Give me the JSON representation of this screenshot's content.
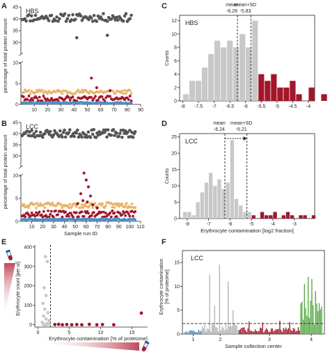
{
  "figure": {
    "panels": [
      {
        "id": "A",
        "letter": "A",
        "group": "HBS"
      },
      {
        "id": "B",
        "letter": "B",
        "group": "LCC"
      },
      {
        "id": "C",
        "letter": "C",
        "group": "HBS"
      },
      {
        "id": "D",
        "letter": "D",
        "group": "LCC"
      },
      {
        "id": "E",
        "letter": "E",
        "group": ""
      },
      {
        "id": "F",
        "letter": "F",
        "group": "LCC"
      }
    ],
    "colors": {
      "dark_gray": "#555555",
      "gray": "#b3b3b3",
      "light_gray": "#c8c8c8",
      "orange": "#e8b56a",
      "red": "#a3162a",
      "blue": "#4a8fc8",
      "green": "#58a845"
    },
    "icons": [
      "test-tube-icon",
      "test-tube-icon"
    ]
  },
  "chart_data": [
    {
      "panel": "A",
      "type": "scatter",
      "title": "HBS",
      "xlabel": "",
      "ylabel": "percentage of total protein amount",
      "xlim": [
        0,
        90
      ],
      "x_ticks": [
        10,
        20,
        30,
        40,
        50,
        60,
        70,
        80,
        90
      ],
      "upper_ylim": [
        25,
        45
      ],
      "upper_ticks": [
        30,
        35,
        40,
        45
      ],
      "lower_ylim": [
        0,
        10
      ],
      "lower_ticks": [
        0,
        5,
        10
      ],
      "grid": false,
      "n_samples": 83,
      "series": [
        {
          "name": "",
          "color": "dark_gray",
          "level": 40.5,
          "spread": 1.7,
          "outliers": [
            [
              42,
              32
            ],
            [
              65,
              33
            ]
          ]
        },
        {
          "name": "",
          "color": "orange",
          "level": 3.0,
          "spread": 0.5,
          "outliers": []
        },
        {
          "name": "",
          "color": "red",
          "level": 1.4,
          "spread": 0.6,
          "outliers": [
            [
              53,
              6.3
            ],
            [
              57,
              4.0
            ],
            [
              67,
              3.3
            ]
          ]
        },
        {
          "name": "",
          "color": "blue",
          "level": 0.35,
          "spread": 0.15,
          "outliers": []
        }
      ]
    },
    {
      "panel": "B",
      "type": "scatter",
      "title": "LCC",
      "xlabel": "Sample run ID",
      "ylabel": "percentage of total protein amount",
      "xlim": [
        0,
        110
      ],
      "x_ticks": [
        10,
        20,
        30,
        40,
        50,
        60,
        70,
        80,
        90,
        100,
        110
      ],
      "upper_ylim": [
        25,
        45
      ],
      "upper_ticks": [
        30,
        35,
        40,
        45
      ],
      "lower_ylim": [
        0,
        10
      ],
      "lower_ticks": [
        0,
        5,
        10
      ],
      "grid": false,
      "n_samples": 105,
      "series": [
        {
          "name": "",
          "color": "dark_gray",
          "level": 40.0,
          "spread": 1.8,
          "outliers": []
        },
        {
          "name": "",
          "color": "orange",
          "level": 3.5,
          "spread": 0.6,
          "outliers": []
        },
        {
          "name": "",
          "color": "red",
          "level": 1.6,
          "spread": 0.7,
          "outliers": [
            [
              58,
              10.5
            ],
            [
              60,
              9.0
            ],
            [
              62,
              7.5
            ],
            [
              55,
              6.0
            ],
            [
              64,
              5.5
            ],
            [
              57,
              4.5
            ],
            [
              61,
              4.2
            ],
            [
              52,
              3.8
            ],
            [
              66,
              3.6
            ],
            [
              70,
              2.9
            ]
          ]
        },
        {
          "name": "",
          "color": "blue",
          "level": 0.4,
          "spread": 0.15,
          "outliers": []
        }
      ]
    },
    {
      "panel": "C",
      "type": "bar",
      "title": "HBS",
      "xlabel": "",
      "ylabel": "Counts",
      "xlim": [
        -8.1,
        -3.8
      ],
      "ylim": [
        0,
        12.8
      ],
      "x_ticks": [
        -8,
        -7.5,
        -7,
        -6.5,
        -6,
        -5.5,
        -5,
        -4.5,
        -4
      ],
      "x_tick_labels": [
        "-8",
        "-7.5",
        "-7",
        "-6.5",
        "-6",
        "-5.5",
        "-5",
        "-4.5",
        "-4"
      ],
      "y_ticks": [
        0,
        2,
        4,
        6,
        8,
        10,
        12
      ],
      "bin_start": -8.0,
      "bin_width": 0.2,
      "values": [
        1,
        3,
        3,
        5,
        7,
        9,
        8,
        9,
        8,
        10,
        8,
        12,
        4,
        3,
        4,
        2,
        2,
        3,
        1,
        0,
        2,
        0,
        1
      ],
      "threshold_bin": 12,
      "annotations": [
        {
          "label": "mean",
          "value": "-6.26",
          "x": -6.26
        },
        {
          "label": "mean+SD",
          "value": "-5.83",
          "x": -5.83
        }
      ]
    },
    {
      "panel": "D",
      "type": "bar",
      "title": "LCC",
      "xlabel": "Erythrocyte contamination [log2 fraction]",
      "ylabel": "Counts",
      "xlim": [
        -8.35,
        -2.05
      ],
      "ylim": [
        0,
        26
      ],
      "x_ticks": [
        -8,
        -7,
        -6,
        -5,
        -4,
        -3
      ],
      "x_tick_labels": [
        "-8",
        "-7",
        "-6",
        "-5",
        "-4",
        "-3"
      ],
      "y_ticks": [
        0,
        5,
        10,
        15,
        20,
        25
      ],
      "bin_start": -8.2,
      "bin_width": 0.2,
      "values": [
        2,
        2,
        1,
        5,
        8,
        11,
        14,
        10,
        12,
        9,
        11,
        24,
        6,
        4,
        2,
        2,
        1,
        0,
        2,
        1,
        1,
        2,
        0,
        1,
        2,
        1,
        0,
        1,
        1,
        0,
        1
      ],
      "threshold_bin": 16,
      "annotations": [
        {
          "label": "mean",
          "value": "-6.24",
          "x": -6.24
        },
        {
          "label": "mean+SD",
          "value": "-5.21",
          "x": -5.21
        }
      ]
    },
    {
      "panel": "E",
      "type": "scatter",
      "title": "",
      "xlabel": "Erythrocyte contamination [% of proteome]",
      "ylabel": "Erythrocyte count [per ul]",
      "xlim": [
        -0.5,
        17.5
      ],
      "ylim": [
        -12,
        410
      ],
      "x_ticks": [
        0,
        5,
        10,
        15
      ],
      "y_ticks": [
        0,
        100,
        200,
        300,
        400
      ],
      "threshold_x": 2.0,
      "below_threshold": [
        [
          1.2,
          350
        ],
        [
          1.5,
          325
        ],
        [
          1.0,
          190
        ],
        [
          1.3,
          150
        ],
        [
          0.8,
          110
        ],
        [
          1.1,
          80
        ],
        [
          1.6,
          62
        ],
        [
          0.9,
          45
        ],
        [
          1.3,
          30
        ],
        [
          1.8,
          20
        ],
        [
          0.7,
          12
        ],
        [
          1.4,
          6
        ],
        [
          1.7,
          3
        ],
        [
          1.2,
          0
        ],
        [
          0.9,
          0
        ],
        [
          1.5,
          1
        ]
      ],
      "above_threshold": [
        [
          2.7,
          1
        ],
        [
          3.3,
          2
        ],
        [
          3.9,
          0
        ],
        [
          4.6,
          1
        ],
        [
          5.4,
          0
        ],
        [
          6.2,
          1
        ],
        [
          7.0,
          0
        ],
        [
          8.2,
          2
        ],
        [
          9.4,
          0
        ],
        [
          10.3,
          1
        ],
        [
          12.1,
          0
        ],
        [
          16.5,
          60
        ]
      ]
    },
    {
      "panel": "F",
      "type": "bar",
      "title": "LCC",
      "xlabel": "Sample collection center",
      "ylabel": "Erythrocyte contamination [% of proteome]",
      "ylim": [
        0,
        17.5
      ],
      "y_ticks": [
        0,
        5,
        10,
        15
      ],
      "threshold_y": 2.2,
      "categories": [
        "1",
        "2",
        "3",
        "4"
      ],
      "centers": [
        {
          "label": "1",
          "color": "blue",
          "n": 14,
          "base": 0.6
        },
        {
          "label": "2",
          "color": "gray",
          "n": 30,
          "base": 1.3,
          "peaks": [
            [
              6,
              12.5
            ],
            [
              14,
              14.5
            ],
            [
              21,
              11.0
            ],
            [
              10,
              6.0
            ],
            [
              25,
              5.0
            ]
          ]
        },
        {
          "label": "3",
          "color": "red",
          "n": 50,
          "base": 0.9,
          "peaks": [
            [
              8,
              2.6
            ],
            [
              19,
              2.4
            ],
            [
              33,
              2.8
            ],
            [
              41,
              2.5
            ]
          ]
        },
        {
          "label": "4",
          "color": "green",
          "n": 18,
          "base": 4.5,
          "peaks": [
            [
              3,
              10.5
            ],
            [
              6,
              12.0
            ],
            [
              9,
              11.5
            ],
            [
              12,
              9.0
            ],
            [
              15,
              6.5
            ]
          ]
        }
      ]
    }
  ]
}
